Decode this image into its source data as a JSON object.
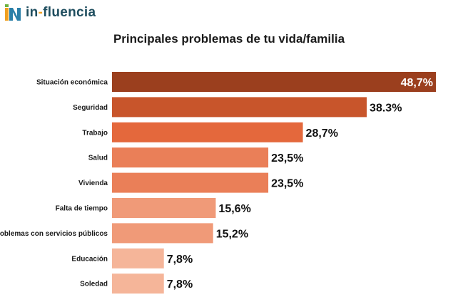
{
  "brand": {
    "name_pre": "in",
    "name_dash": "-",
    "name_post": "fluencia"
  },
  "chart_data": {
    "type": "bar",
    "orientation": "horizontal",
    "title": "Principales problemas de tu vida/familia",
    "xlabel": "",
    "ylabel": "",
    "xlim": [
      0,
      48.7
    ],
    "grid": false,
    "categories": [
      "Situación económica",
      "Seguridad",
      "Trabajo",
      "Salud",
      "Vivienda",
      "Falta de tiempo",
      "Problemas con servicios públicos",
      "Educación",
      "Soledad"
    ],
    "values": [
      48.7,
      38.3,
      28.7,
      23.5,
      23.5,
      15.6,
      15.2,
      7.8,
      7.8
    ],
    "value_labels": [
      "48,7%",
      "38.3%",
      "28,7%",
      "23,5%",
      "23,5%",
      "15,6%",
      "15,2%",
      "7,8%",
      "7,8%"
    ],
    "colors": [
      "#9b3f1e",
      "#c8552b",
      "#e4683c",
      "#ea7f58",
      "#ea7f58",
      "#f09a78",
      "#f09a78",
      "#f5b599",
      "#f5b599"
    ]
  }
}
